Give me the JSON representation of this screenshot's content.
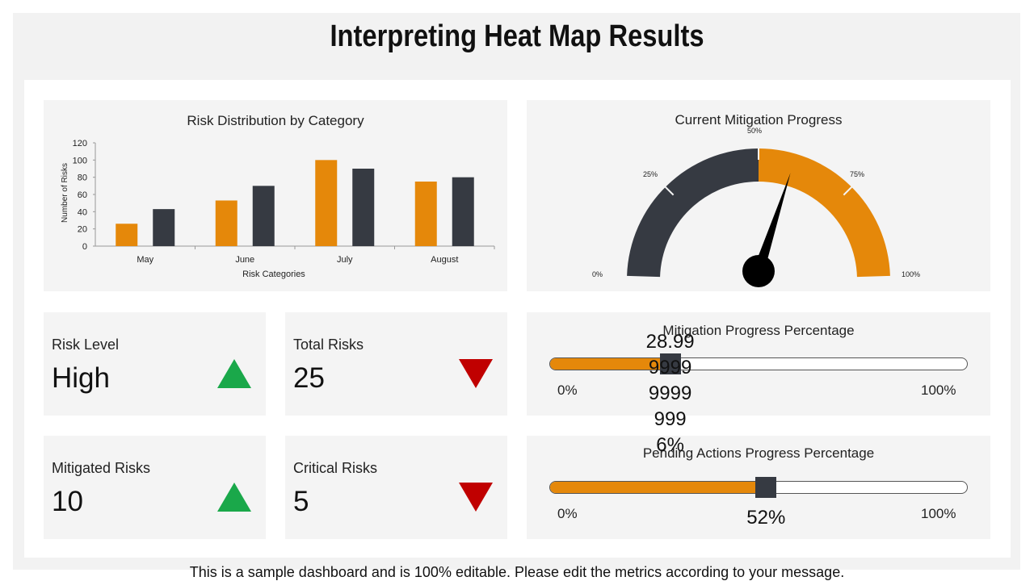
{
  "page": {
    "title": "Interpreting Heat Map Results",
    "footer": "This is a sample dashboard and is 100% editable. Please edit the metrics according to your message."
  },
  "colors": {
    "orange": "#e5880a",
    "dark": "#363a42",
    "up": "#1aa84a",
    "down": "#c00000",
    "panel": "#f4f4f4"
  },
  "bar_chart": {
    "title": "Risk Distribution by Category",
    "xlabel": "Risk Categories",
    "ylabel": "Number of Risks"
  },
  "gauge": {
    "title": "Current Mitigation Progress",
    "labels": {
      "p0": "0%",
      "p25": "25%",
      "p50": "50%",
      "p75": "75%",
      "p100": "100%"
    },
    "value_fraction": 0.6
  },
  "kpis": [
    {
      "label": "Risk Level",
      "value": "High",
      "trend": "up",
      "icon": "triangle-up-icon"
    },
    {
      "label": "Total Risks",
      "value": "25",
      "trend": "down",
      "icon": "triangle-down-icon"
    },
    {
      "label": "Mitigated Risks",
      "value": "10",
      "trend": "up",
      "icon": "triangle-up-icon"
    },
    {
      "label": "Critical Risks",
      "value": "5",
      "trend": "down",
      "icon": "triangle-down-icon"
    }
  ],
  "progress": [
    {
      "title": "Mitigation Progress Percentage",
      "min_label": "0%",
      "max_label": "100%",
      "value_text": "28.99999999999996%",
      "fraction": 0.29
    },
    {
      "title": "Pending Actions Progress Percentage",
      "min_label": "0%",
      "max_label": "100%",
      "value_text": "52%",
      "fraction": 0.52
    }
  ],
  "chart_data": {
    "type": "bar",
    "categories": [
      "May",
      "June",
      "July",
      "August"
    ],
    "series": [
      {
        "values": [
          26,
          53,
          100,
          75
        ],
        "color": "#e5880a"
      },
      {
        "values": [
          43,
          70,
          90,
          80
        ],
        "color": "#363a42"
      }
    ],
    "yticks": [
      "0",
      "20",
      "40",
      "60",
      "80",
      "100",
      "120"
    ],
    "ylim": [
      0,
      120
    ],
    "title": "Risk Distribution by Category",
    "xlabel": "Risk Categories",
    "ylabel": "Number of Risks",
    "grid": false,
    "legend": "none"
  }
}
